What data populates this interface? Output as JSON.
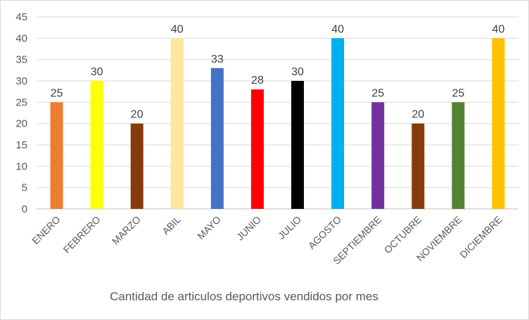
{
  "chart_data": {
    "type": "bar",
    "title": "Cantidad de articulos deportivos vendidos por mes",
    "xlabel": "",
    "ylabel": "",
    "ylim": [
      0,
      45
    ],
    "yticks": [
      0,
      5,
      10,
      15,
      20,
      25,
      30,
      35,
      40,
      45
    ],
    "grid": true,
    "legend": "none",
    "categories": [
      "ENERO",
      "FEBRERO",
      "MARZO",
      "ABIL",
      "MAYO",
      "JUNIO",
      "JULIO",
      "AGOSTO",
      "SEPTIEMBRE",
      "OCTUBRE",
      "NOVIEMBRE",
      "DICIEMBRE"
    ],
    "values": [
      25,
      30,
      20,
      40,
      33,
      28,
      30,
      40,
      25,
      20,
      25,
      40
    ],
    "colors": [
      "#ED7D31",
      "#FFFF00",
      "#843C0C",
      "#FFE699",
      "#4472C4",
      "#FF0000",
      "#000000",
      "#00B0F0",
      "#7030A0",
      "#843C0C",
      "#548235",
      "#FFC000"
    ]
  }
}
